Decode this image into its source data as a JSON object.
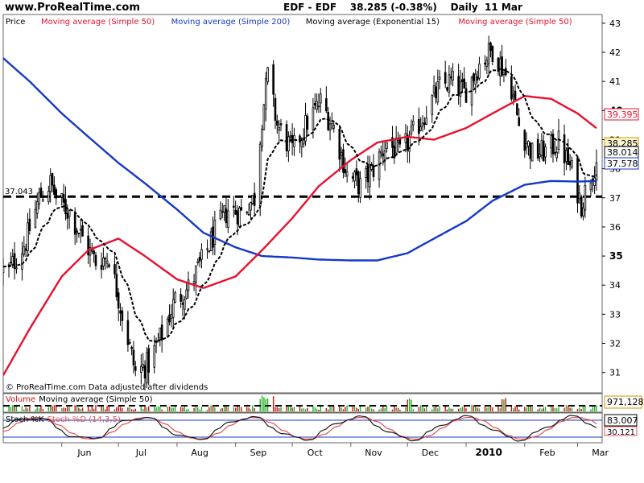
{
  "header": {
    "site": "www.ProRealTime.com",
    "instrument": "EDF - EDF",
    "last": "38.285 (-0.38%)",
    "period": "Daily",
    "date": "11 Mar"
  },
  "colors": {
    "price": "#000000",
    "sma50": "#e8102e",
    "sma200": "#1438c8",
    "ema15": "#000000",
    "support": "#000000",
    "volume_up": "#22b022",
    "volume_down": "#d01010",
    "stoch_k": "#1a1a1a",
    "stoch_d": "#e85050"
  },
  "chart_data": [
    {
      "type": "candlestick",
      "legend": [
        {
          "label": "Price",
          "color": "#000000"
        },
        {
          "label": "Moving average (Simple 50)",
          "color": "#e8102e"
        },
        {
          "label": "Moving average (Simple 200)",
          "color": "#1438c8"
        },
        {
          "label": "Moving average (Exponential 15)",
          "color": "#000000"
        },
        {
          "label": "Moving average (Simple 50)",
          "color": "#e8102e"
        }
      ],
      "x_ticks": [
        "Jun",
        "Jul",
        "Aug",
        "Sep",
        "Oct",
        "Nov",
        "Dec",
        "2010",
        "Feb",
        "Mar"
      ],
      "y_ticks": [
        31,
        32,
        33,
        34,
        35,
        36,
        37,
        38,
        39,
        40,
        41,
        42,
        43
      ],
      "ylim": [
        30.3,
        43.3
      ],
      "support_level": 37.043,
      "support_label": "37.043",
      "last_values": [
        {
          "label": "39.395",
          "value": 39.395,
          "series": "sma50"
        },
        {
          "label": "38.285",
          "value": 38.285,
          "series": "price"
        },
        {
          "label": "38.014",
          "value": 38.014,
          "series": "ema15"
        },
        {
          "label": "37.578",
          "value": 37.578,
          "series": "sma200"
        }
      ],
      "footer": "© ProRealTime.com  Data adjusted after dividends",
      "close_anchors": [
        [
          "2009-05-04",
          34.5
        ],
        [
          "2009-05-13",
          35.5
        ],
        [
          "2009-05-20",
          37.0
        ],
        [
          "2009-05-26",
          37.5
        ],
        [
          "2009-05-29",
          37.0
        ],
        [
          "2009-06-05",
          36.5
        ],
        [
          "2009-06-12",
          35.6
        ],
        [
          "2009-06-19",
          34.8
        ],
        [
          "2009-06-26",
          35.0
        ],
        [
          "2009-07-03",
          33.0
        ],
        [
          "2009-07-10",
          31.0
        ],
        [
          "2009-07-17",
          31.3
        ],
        [
          "2009-07-24",
          32.3
        ],
        [
          "2009-07-31",
          33.5
        ],
        [
          "2009-08-07",
          33.9
        ],
        [
          "2009-08-14",
          34.8
        ],
        [
          "2009-08-21",
          35.8
        ],
        [
          "2009-08-28",
          36.6
        ],
        [
          "2009-09-04",
          36.5
        ],
        [
          "2009-09-11",
          37.0
        ],
        [
          "2009-09-15",
          39.8
        ],
        [
          "2009-09-18",
          41.2
        ],
        [
          "2009-09-23",
          39.5
        ],
        [
          "2009-10-01",
          38.6
        ],
        [
          "2009-10-09",
          39.6
        ],
        [
          "2009-10-16",
          40.3
        ],
        [
          "2009-10-23",
          39.4
        ],
        [
          "2009-10-30",
          37.8
        ],
        [
          "2009-11-06",
          37.4
        ],
        [
          "2009-11-13",
          38.0
        ],
        [
          "2009-11-20",
          38.9
        ],
        [
          "2009-11-27",
          38.5
        ],
        [
          "2009-12-04",
          39.2
        ],
        [
          "2009-12-11",
          40.0
        ],
        [
          "2009-12-18",
          40.8
        ],
        [
          "2009-12-24",
          41.0
        ],
        [
          "2009-12-31",
          40.6
        ],
        [
          "2010-01-08",
          41.6
        ],
        [
          "2010-01-15",
          42.1
        ],
        [
          "2010-01-20",
          41.5
        ],
        [
          "2010-01-25",
          40.8
        ],
        [
          "2010-01-29",
          39.5
        ],
        [
          "2010-02-05",
          38.5
        ],
        [
          "2010-02-12",
          38.6
        ],
        [
          "2010-02-19",
          38.9
        ],
        [
          "2010-02-26",
          37.9
        ],
        [
          "2010-03-03",
          36.8
        ],
        [
          "2010-03-08",
          37.8
        ],
        [
          "2010-03-11",
          38.285
        ]
      ],
      "sma50_anchors": [
        [
          "2009-05-01",
          30.9
        ],
        [
          "2009-05-15",
          32.5
        ],
        [
          "2009-06-01",
          34.3
        ],
        [
          "2009-06-15",
          35.2
        ],
        [
          "2009-07-01",
          35.6
        ],
        [
          "2009-07-15",
          35.0
        ],
        [
          "2009-08-01",
          34.2
        ],
        [
          "2009-08-15",
          33.9
        ],
        [
          "2009-09-01",
          34.3
        ],
        [
          "2009-09-15",
          35.2
        ],
        [
          "2009-10-01",
          36.3
        ],
        [
          "2009-10-15",
          37.4
        ],
        [
          "2009-11-01",
          38.3
        ],
        [
          "2009-11-15",
          38.9
        ],
        [
          "2009-12-01",
          39.1
        ],
        [
          "2009-12-15",
          39.0
        ],
        [
          "2010-01-01",
          39.4
        ],
        [
          "2010-01-15",
          39.9
        ],
        [
          "2010-02-01",
          40.5
        ],
        [
          "2010-02-15",
          40.4
        ],
        [
          "2010-03-01",
          39.9
        ],
        [
          "2010-03-11",
          39.395
        ]
      ],
      "sma200_anchors": [
        [
          "2009-05-01",
          41.8
        ],
        [
          "2009-05-15",
          41.0
        ],
        [
          "2009-06-01",
          39.9
        ],
        [
          "2009-06-15",
          39.1
        ],
        [
          "2009-07-01",
          38.2
        ],
        [
          "2009-07-15",
          37.5
        ],
        [
          "2009-08-01",
          36.6
        ],
        [
          "2009-08-15",
          35.8
        ],
        [
          "2009-09-01",
          35.3
        ],
        [
          "2009-09-15",
          35.0
        ],
        [
          "2009-10-01",
          34.95
        ],
        [
          "2009-10-15",
          34.88
        ],
        [
          "2009-11-01",
          34.85
        ],
        [
          "2009-11-15",
          34.85
        ],
        [
          "2009-12-01",
          35.1
        ],
        [
          "2009-12-15",
          35.6
        ],
        [
          "2010-01-01",
          36.2
        ],
        [
          "2010-01-15",
          36.9
        ],
        [
          "2010-02-01",
          37.45
        ],
        [
          "2010-02-15",
          37.58
        ],
        [
          "2010-03-01",
          37.56
        ],
        [
          "2010-03-11",
          37.578
        ]
      ]
    },
    {
      "type": "bar",
      "title": "Volume",
      "label": "Moving average (Simple 50)",
      "last_label": "971,128",
      "note": "volume bars colored green for up days and red for down days, with a dashed 50-day average"
    },
    {
      "type": "line",
      "title": "Stoch %K",
      "label": "Stoch %D (14,3,5)",
      "last_values": [
        "83.007",
        "30.121"
      ]
    }
  ]
}
